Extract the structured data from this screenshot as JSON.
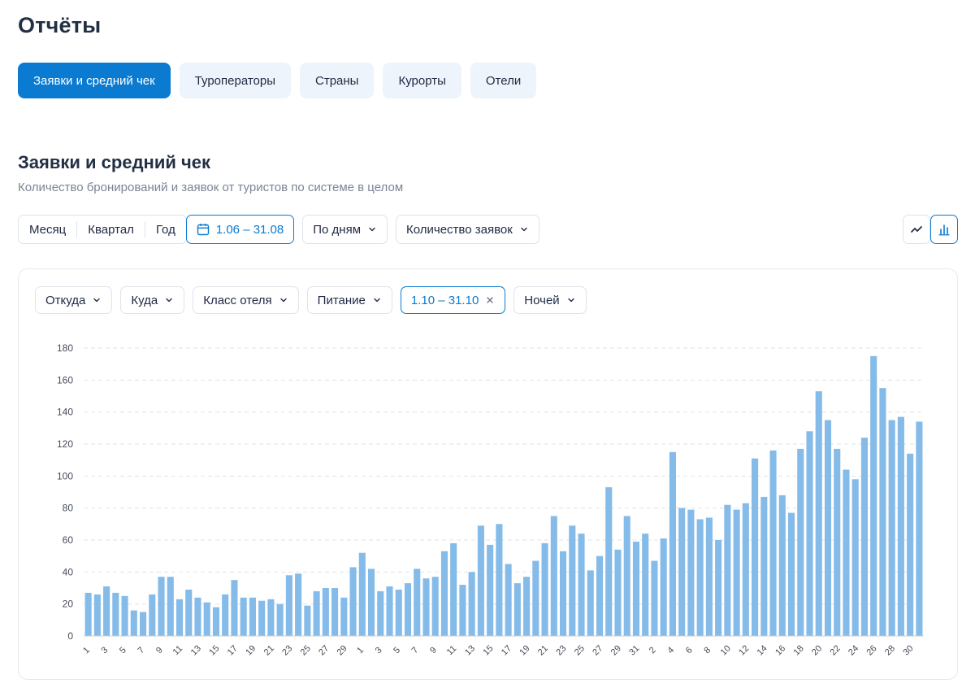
{
  "page": {
    "title": "Отчёты"
  },
  "tabs": [
    {
      "label": "Заявки и средний чек",
      "active": true
    },
    {
      "label": "Туроператоры",
      "active": false
    },
    {
      "label": "Страны",
      "active": false
    },
    {
      "label": "Курорты",
      "active": false
    },
    {
      "label": "Отели",
      "active": false
    }
  ],
  "section": {
    "title": "Заявки и средний чек",
    "subtitle": "Количество бронирований и заявок от туристов по системе в целом"
  },
  "controls": {
    "periods": [
      "Месяц",
      "Квартал",
      "Год"
    ],
    "date_range": "1.06 – 31.08",
    "grouping": "По дням",
    "metric": "Количество заявок"
  },
  "view_toggle": {
    "icons": [
      "line-chart-icon",
      "bar-chart-icon"
    ],
    "active": "bar-chart-icon"
  },
  "filters": {
    "from": "Откуда",
    "to": "Куда",
    "hotel_class": "Класс отеля",
    "meal": "Питание",
    "dates": "1.10 – 31.10",
    "nights": "Ночей"
  },
  "colors": {
    "accent": "#0a7bd1",
    "bar": "#85bbe8",
    "tab_bg": "#eef4fb",
    "grid": "#dfe3ea"
  },
  "chart_data": {
    "type": "bar",
    "title": "",
    "xlabel": "",
    "ylabel": "",
    "ylim": [
      0,
      180
    ],
    "yticks": [
      0,
      20,
      40,
      60,
      80,
      100,
      120,
      140,
      160,
      180
    ],
    "grid": "horizontal-dashed",
    "categories": [
      "1",
      "2",
      "3",
      "4",
      "5",
      "6",
      "7",
      "8",
      "9",
      "10",
      "11",
      "12",
      "13",
      "14",
      "15",
      "16",
      "17",
      "18",
      "19",
      "20",
      "21",
      "22",
      "23",
      "24",
      "25",
      "26",
      "27",
      "28",
      "29",
      "30",
      "1",
      "2",
      "3",
      "4",
      "5",
      "6",
      "7",
      "8",
      "9",
      "10",
      "11",
      "12",
      "13",
      "14",
      "15",
      "16",
      "17",
      "18",
      "19",
      "20",
      "21",
      "22",
      "23",
      "24",
      "25",
      "26",
      "27",
      "28",
      "29",
      "30",
      "31",
      "1",
      "2",
      "3",
      "4",
      "5",
      "6",
      "7",
      "8",
      "9",
      "10",
      "11",
      "12",
      "13",
      "14",
      "15",
      "16",
      "17",
      "18",
      "19",
      "20",
      "21",
      "22",
      "23",
      "24",
      "25",
      "26",
      "27",
      "28",
      "29",
      "30",
      "31"
    ],
    "x_tick_labels": [
      "1",
      "3",
      "5",
      "7",
      "9",
      "11",
      "13",
      "15",
      "17",
      "19",
      "21",
      "23",
      "25",
      "27",
      "29",
      "1",
      "3",
      "5",
      "7",
      "9",
      "11",
      "13",
      "15",
      "17",
      "19",
      "21",
      "23",
      "25",
      "27",
      "29",
      "31",
      "2",
      "4",
      "6",
      "8",
      "10",
      "12",
      "14",
      "16",
      "18",
      "20",
      "22",
      "24",
      "26",
      "28",
      "30"
    ],
    "values": [
      27,
      26,
      31,
      27,
      25,
      16,
      15,
      26,
      37,
      37,
      23,
      29,
      24,
      21,
      18,
      26,
      35,
      24,
      24,
      22,
      23,
      20,
      38,
      39,
      19,
      28,
      30,
      30,
      24,
      43,
      52,
      42,
      28,
      31,
      29,
      33,
      42,
      36,
      37,
      53,
      58,
      32,
      40,
      69,
      57,
      70,
      45,
      33,
      37,
      47,
      58,
      75,
      53,
      69,
      64,
      41,
      50,
      93,
      54,
      75,
      59,
      64,
      47,
      61,
      115,
      80,
      79,
      73,
      74,
      60,
      82,
      79,
      83,
      111,
      87,
      116,
      88,
      77,
      117,
      128,
      153,
      135,
      117,
      104,
      98,
      124,
      175,
      155,
      135,
      137,
      114,
      134
    ]
  }
}
